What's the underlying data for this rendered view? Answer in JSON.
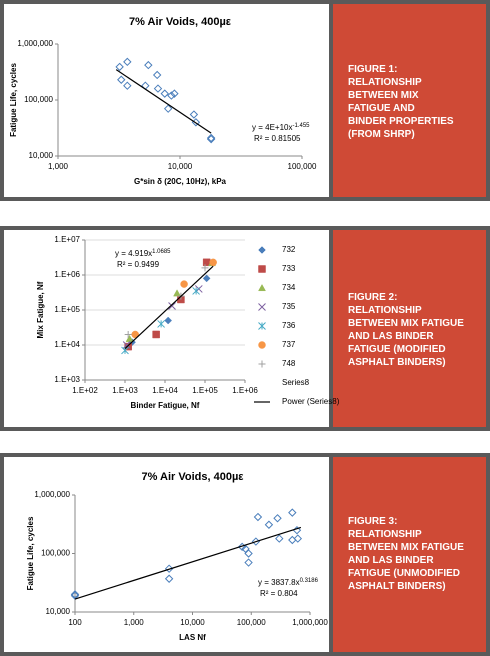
{
  "chart_data": [
    {
      "type": "scatter",
      "title": "7% Air Voids, 400µε",
      "x_label": "G*sin δ  (20C, 10Hz), kPa",
      "y_label": "Fatigue Life, cycles",
      "xscale": "log",
      "yscale": "log",
      "grid": false,
      "color": "#4a7ebb",
      "marker": "diamond-open",
      "xlim": [
        1000,
        100000
      ],
      "ylim": [
        10000,
        1000000
      ],
      "xticks": [
        {
          "value": 1000,
          "label": "1,000"
        },
        {
          "value": 10000,
          "label": "10,000"
        },
        {
          "value": 100000,
          "label": "100,000"
        }
      ],
      "yticks": [
        {
          "value": 10000,
          "label": "10,000"
        },
        {
          "value": 100000,
          "label": "100,000"
        },
        {
          "value": 1000000,
          "label": "1,000,000"
        }
      ],
      "x": [
        3200,
        3700,
        3300,
        3700,
        5500,
        5200,
        6500,
        6600,
        7500,
        8500,
        9000,
        8000,
        13000,
        13500,
        18000,
        18000
      ],
      "values": [
        390000,
        480000,
        230000,
        180000,
        420000,
        180000,
        280000,
        160000,
        130000,
        120000,
        130000,
        70000,
        55000,
        40000,
        20000,
        21000
      ],
      "trendline": {
        "color": "#000000",
        "x": [
          3000,
          18000
        ],
        "values": [
          348000,
          25600
        ]
      },
      "equation": {
        "base": "y = 4E+10x",
        "exponent": "-1.455",
        "r2": "R² = 0.81505"
      }
    },
    {
      "type": "scatter",
      "x_label": "Binder Fatigue, Nf",
      "y_label": "Mix Fatigue, Nf",
      "xscale": "log",
      "yscale": "log",
      "grid": true,
      "xlim": [
        100,
        1000000
      ],
      "ylim": [
        1000,
        10000000
      ],
      "xticks": [
        {
          "value": 100,
          "label": "1.E+02"
        },
        {
          "value": 1000,
          "label": "1.E+03"
        },
        {
          "value": 10000,
          "label": "1.E+04"
        },
        {
          "value": 100000,
          "label": "1.E+05"
        },
        {
          "value": 1000000,
          "label": "1.E+06"
        }
      ],
      "yticks": [
        {
          "value": 1000,
          "label": "1.E+03"
        },
        {
          "value": 10000,
          "label": "1.E+04"
        },
        {
          "value": 100000,
          "label": "1.E+05"
        },
        {
          "value": 1000000,
          "label": "1.E+06"
        },
        {
          "value": 10000000,
          "label": "1.E+07"
        }
      ],
      "series": [
        {
          "name": "732",
          "color": "#4a7ebb",
          "marker": "diamond",
          "x": [
            1500,
            12000,
            110000
          ],
          "values": [
            12000,
            50000,
            800000
          ]
        },
        {
          "name": "733",
          "color": "#be4b48",
          "marker": "square",
          "x": [
            1200,
            6000,
            25000,
            110000
          ],
          "values": [
            9000,
            20000,
            200000,
            2300000
          ]
        },
        {
          "name": "734",
          "color": "#98b954",
          "marker": "triangle",
          "x": [
            1300,
            20000,
            150000
          ],
          "values": [
            15000,
            300000,
            2200000
          ]
        },
        {
          "name": "735",
          "color": "#7d60a0",
          "marker": "x",
          "x": [
            1100,
            15000,
            70000
          ],
          "values": [
            10000,
            130000,
            400000
          ]
        },
        {
          "name": "736",
          "color": "#46aac5",
          "marker": "asterisk",
          "x": [
            1000,
            8000,
            60000
          ],
          "values": [
            7000,
            40000,
            350000
          ]
        },
        {
          "name": "737",
          "color": "#f79646",
          "marker": "circle",
          "x": [
            1800,
            30000,
            160000
          ],
          "values": [
            20000,
            550000,
            2300000
          ]
        },
        {
          "name": "748",
          "color": "#a0a0a0",
          "marker": "plus",
          "x": [
            1200,
            25000,
            100000
          ],
          "values": [
            20000,
            250000,
            1600000
          ]
        },
        {
          "name": "Series8",
          "color": "#000000",
          "marker": "none",
          "x": [],
          "values": []
        }
      ],
      "trendline": {
        "name": "Power (Series8)",
        "color": "#000000",
        "x": [
          1000,
          160000
        ],
        "values": [
          7900,
          1790000
        ]
      },
      "equation": {
        "base": "y = 4.919x",
        "exponent": "1.0685",
        "r2": "R² = 0.9499"
      }
    },
    {
      "type": "scatter",
      "title": "7% Air Voids, 400µε",
      "x_label": "LAS Nf",
      "y_label": "Fatigue Life, cycles",
      "xscale": "log",
      "yscale": "log",
      "grid": false,
      "color": "#4a7ebb",
      "marker": "diamond-open",
      "xlim": [
        100,
        1000000
      ],
      "ylim": [
        10000,
        1000000
      ],
      "xticks": [
        100,
        {
          "value": 1000,
          "label": "1,000"
        },
        {
          "value": 10000,
          "label": "10,000"
        },
        {
          "value": 100000,
          "label": "100,000"
        },
        {
          "value": 1000000,
          "label": "1,000,000"
        }
      ],
      "yticks": [
        {
          "value": 10000,
          "label": "10,000"
        },
        {
          "value": 100000,
          "label": "100,000"
        },
        {
          "value": 1000000,
          "label": "1,000,000"
        }
      ],
      "x": [
        100,
        100,
        4000,
        4000,
        70000,
        80000,
        90000,
        90000,
        120000,
        130000,
        200000,
        280000,
        300000,
        500000,
        500000,
        600000,
        620000
      ],
      "values": [
        19000,
        20000,
        55000,
        37000,
        130000,
        120000,
        70000,
        100000,
        160000,
        420000,
        310000,
        400000,
        180000,
        500000,
        170000,
        250000,
        180000
      ],
      "trendline": {
        "color": "#000000",
        "x": [
          100,
          700000
        ],
        "values": [
          16650,
          279000
        ]
      },
      "equation": {
        "base": "y = 3837.8x",
        "exponent": "0.3186",
        "r2": "R² = 0.804"
      }
    }
  ],
  "captions": [
    [
      "FIGURE 1:",
      "RELATIONSHIP",
      "BETWEEN MIX",
      "FATIGUE AND",
      "BINDER PROPERTIES",
      "(FROM SHRP)"
    ],
    [
      "FIGURE 2:",
      "RELATIONSHIP",
      "BETWEEN MIX FATIGUE",
      "AND LAS BINDER",
      "FATIGUE (MODIFIED",
      "ASPHALT BINDERS)"
    ],
    [
      "FIGURE 3:",
      "RELATIONSHIP",
      "BETWEEN MIX FATIGUE",
      "AND LAS BINDER",
      "FATIGUE (UNMODIFIED",
      "ASPHALT BINDERS)"
    ]
  ]
}
